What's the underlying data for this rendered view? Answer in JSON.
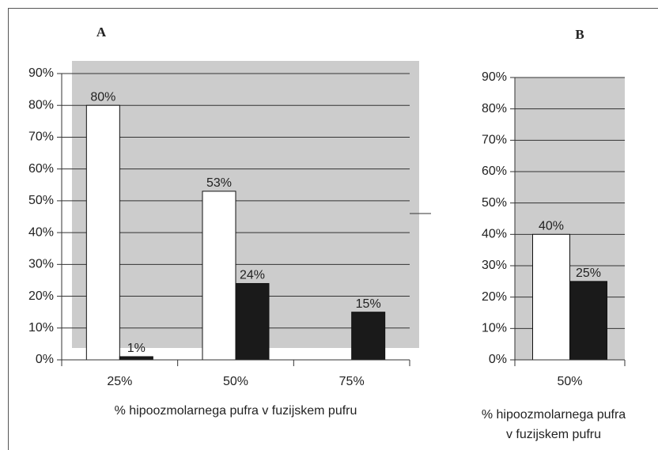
{
  "chart_data": [
    {
      "type": "bar",
      "title": "A",
      "categories": [
        "25%",
        "50%",
        "75%"
      ],
      "series": [
        {
          "color": "#ffffff",
          "values": [
            80,
            53,
            null
          ],
          "value_labels": [
            "80%",
            "53%",
            null
          ]
        },
        {
          "color": "#1a1a1a",
          "values": [
            1,
            24,
            15
          ],
          "value_labels": [
            "1%",
            "24%",
            "15%"
          ]
        }
      ],
      "ylim": [
        0,
        90
      ],
      "yticks": [
        {
          "value": 0,
          "label": "0%"
        },
        {
          "value": 10,
          "label": "10%"
        },
        {
          "value": 20,
          "label": "20%"
        },
        {
          "value": 30,
          "label": "30%"
        },
        {
          "value": 40,
          "label": "40%"
        },
        {
          "value": 50,
          "label": "50%"
        },
        {
          "value": 60,
          "label": "60%"
        },
        {
          "value": 70,
          "label": "70%"
        },
        {
          "value": 80,
          "label": "80%"
        },
        {
          "value": 90,
          "label": "90%"
        }
      ],
      "xlabel": [
        "% hipoozmolarnega pufra v fuzijskem pufru"
      ],
      "grid": true
    },
    {
      "type": "bar",
      "title": "B",
      "categories": [
        "50%"
      ],
      "series": [
        {
          "color": "#ffffff",
          "values": [
            40
          ],
          "value_labels": [
            "40%"
          ]
        },
        {
          "color": "#1a1a1a",
          "values": [
            25
          ],
          "value_labels": [
            "25%"
          ]
        }
      ],
      "ylim": [
        0,
        90
      ],
      "yticks": [
        {
          "value": 0,
          "label": "0%"
        },
        {
          "value": 10,
          "label": "10%"
        },
        {
          "value": 20,
          "label": "20%"
        },
        {
          "value": 30,
          "label": "30%"
        },
        {
          "value": 40,
          "label": "40%"
        },
        {
          "value": 50,
          "label": "50%"
        },
        {
          "value": 60,
          "label": "60%"
        },
        {
          "value": 70,
          "label": "70%"
        },
        {
          "value": 80,
          "label": "80%"
        },
        {
          "value": 90,
          "label": "90%"
        }
      ],
      "xlabel": [
        "% hipoozmolarnega pufra",
        "v fuzijskem pufru"
      ],
      "grid": true
    }
  ]
}
